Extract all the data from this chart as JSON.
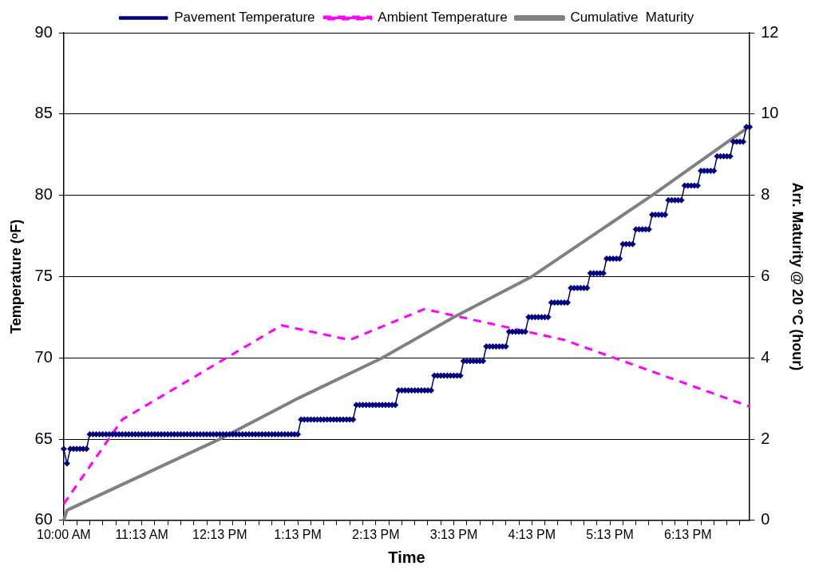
{
  "chart_data": {
    "type": "line",
    "xlabel": "Time",
    "ylabel": "Temperature (ᵒF)",
    "y2label": "Arr. Maturity @ 20 °C (hour)",
    "categories": [
      "10:00 AM",
      null,
      null,
      null,
      null,
      null,
      null,
      null,
      null,
      null,
      null,
      null,
      null,
      null,
      null,
      null,
      null,
      null,
      null,
      null,
      null,
      null,
      null,
      null,
      "11:13 AM",
      null,
      null,
      null,
      null,
      null,
      null,
      null,
      null,
      null,
      null,
      null,
      null,
      null,
      null,
      null,
      null,
      null,
      null,
      null,
      null,
      null,
      null,
      null,
      "12:13 PM",
      null,
      null,
      null,
      null,
      null,
      null,
      null,
      null,
      null,
      null,
      null,
      null,
      null,
      null,
      null,
      null,
      null,
      null,
      null,
      null,
      null,
      null,
      null,
      "1:13 PM",
      null,
      null,
      null,
      null,
      null,
      null,
      null,
      null,
      null,
      null,
      null,
      null,
      null,
      null,
      null,
      null,
      null,
      null,
      null,
      null,
      null,
      null,
      null,
      "2:13 PM",
      null,
      null,
      null,
      null,
      null,
      null,
      null,
      null,
      null,
      null,
      null,
      null,
      null,
      null,
      null,
      null,
      null,
      null,
      null,
      null,
      null,
      null,
      null,
      "3:13 PM",
      null,
      null,
      null,
      null,
      null,
      null,
      null,
      null,
      null,
      null,
      null,
      null,
      null,
      null,
      null,
      null,
      null,
      null,
      null,
      null,
      null,
      null,
      null,
      "4:13 PM",
      null,
      null,
      null,
      null,
      null,
      null,
      null,
      null,
      null,
      null,
      null,
      null,
      null,
      null,
      null,
      null,
      null,
      null,
      null,
      null,
      null,
      null,
      null,
      "5:13 PM",
      null,
      null,
      null,
      null,
      null,
      null,
      null,
      null,
      null,
      null,
      null,
      null,
      null,
      null,
      null,
      null,
      null,
      null,
      null,
      null,
      null,
      null,
      null,
      "6:13 PM",
      null,
      null,
      null,
      null,
      null,
      null,
      null,
      null,
      null,
      null,
      null,
      null,
      null,
      null,
      null,
      null,
      null,
      null,
      null
    ],
    "series": [
      {
        "name": "Pavement Temperature",
        "color": "#000080",
        "marker": "diamond",
        "line_style": "solid",
        "values": [
          64.4,
          63.5,
          64.4,
          64.4,
          64.4,
          64.4,
          64.4,
          64.4,
          65.3,
          65.3,
          65.3,
          65.3,
          65.3,
          65.3,
          65.3,
          65.3,
          65.3,
          65.3,
          65.3,
          65.3,
          65.3,
          65.3,
          65.3,
          65.3,
          65.3,
          65.3,
          65.3,
          65.3,
          65.3,
          65.3,
          65.3,
          65.3,
          65.3,
          65.3,
          65.3,
          65.3,
          65.3,
          65.3,
          65.3,
          65.3,
          65.3,
          65.3,
          65.3,
          65.3,
          65.3,
          65.3,
          65.3,
          65.3,
          65.3,
          65.3,
          65.3,
          65.3,
          65.3,
          65.3,
          65.3,
          65.3,
          65.3,
          65.3,
          65.3,
          65.3,
          65.3,
          65.3,
          65.3,
          65.3,
          65.3,
          65.3,
          65.3,
          65.3,
          65.3,
          65.3,
          65.3,
          65.3,
          65.3,
          66.2,
          66.2,
          66.2,
          66.2,
          66.2,
          66.2,
          66.2,
          66.2,
          66.2,
          66.2,
          66.2,
          66.2,
          66.2,
          66.2,
          66.2,
          66.2,
          66.2,
          67.1,
          67.1,
          67.1,
          67.1,
          67.1,
          67.1,
          67.1,
          67.1,
          67.1,
          67.1,
          67.1,
          67.1,
          67.1,
          68.0,
          68.0,
          68.0,
          68.0,
          68.0,
          68.0,
          68.0,
          68.0,
          68.0,
          68.0,
          68.0,
          68.9,
          68.9,
          68.9,
          68.9,
          68.9,
          68.9,
          68.9,
          68.9,
          68.9,
          69.8,
          69.8,
          69.8,
          69.8,
          69.8,
          69.8,
          69.8,
          70.7,
          70.7,
          70.7,
          70.7,
          70.7,
          70.7,
          70.7,
          71.6,
          71.6,
          71.6,
          71.6,
          71.6,
          71.6,
          72.5,
          72.5,
          72.5,
          72.5,
          72.5,
          72.5,
          72.5,
          73.4,
          73.4,
          73.4,
          73.4,
          73.4,
          73.4,
          74.3,
          74.3,
          74.3,
          74.3,
          74.3,
          74.3,
          75.2,
          75.2,
          75.2,
          75.2,
          75.2,
          76.1,
          76.1,
          76.1,
          76.1,
          76.1,
          77.0,
          77.0,
          77.0,
          77.0,
          77.9,
          77.9,
          77.9,
          77.9,
          77.9,
          78.8,
          78.8,
          78.8,
          78.8,
          78.8,
          79.7,
          79.7,
          79.7,
          79.7,
          79.7,
          80.6,
          80.6,
          80.6,
          80.6,
          80.6,
          81.5,
          81.5,
          81.5,
          81.5,
          81.5,
          82.4,
          82.4,
          82.4,
          82.4,
          82.4,
          83.3,
          83.3,
          83.3,
          83.3,
          84.2,
          84.2
        ]
      },
      {
        "name": "Ambient Temperature",
        "color": "#ff00ff",
        "marker": "none",
        "line_style": "dashed",
        "values": [
          61.0,
          null,
          null,
          null,
          null,
          null,
          null,
          null,
          null,
          null,
          null,
          null,
          null,
          null,
          null,
          null,
          null,
          null,
          66.2,
          null,
          null,
          null,
          null,
          null,
          null,
          null,
          null,
          null,
          null,
          null,
          null,
          null,
          null,
          null,
          null,
          null,
          null,
          null,
          null,
          null,
          null,
          null,
          null,
          null,
          null,
          null,
          null,
          null,
          null,
          null,
          null,
          null,
          null,
          null,
          null,
          null,
          null,
          null,
          null,
          null,
          null,
          null,
          null,
          null,
          null,
          null,
          null,
          72.0,
          null,
          null,
          null,
          null,
          null,
          null,
          null,
          null,
          null,
          null,
          null,
          null,
          null,
          null,
          null,
          null,
          null,
          null,
          null,
          null,
          71.1,
          null,
          null,
          null,
          null,
          null,
          null,
          null,
          null,
          null,
          null,
          null,
          null,
          null,
          null,
          null,
          null,
          null,
          null,
          null,
          null,
          null,
          null,
          73.0,
          null,
          null,
          null,
          null,
          null,
          null,
          null,
          null,
          null,
          null,
          null,
          null,
          null,
          null,
          null,
          null,
          null,
          null,
          null,
          null,
          null,
          null,
          null,
          null,
          null,
          null,
          null,
          null,
          null,
          null,
          null,
          null,
          null,
          null,
          null,
          null,
          null,
          null,
          null,
          null,
          null,
          null,
          71.1,
          null,
          null,
          null,
          null,
          null,
          null,
          null,
          null,
          null,
          null,
          null,
          null,
          null,
          null,
          null,
          null,
          null,
          null,
          null,
          null,
          null,
          null,
          null,
          null,
          null,
          null,
          null,
          null,
          null,
          null,
          null,
          null,
          null,
          null,
          null,
          null,
          null,
          null,
          null,
          null,
          null,
          null,
          null,
          null,
          null,
          null,
          null,
          null,
          null,
          null,
          null,
          null,
          null,
          null,
          null,
          null,
          67.0
        ]
      },
      {
        "name": "Cumulative  Maturity",
        "color": "#808080",
        "marker": "none",
        "line_style": "solid",
        "axis": "y2",
        "values": [
          0,
          0.25,
          null,
          null,
          null,
          null,
          null,
          null,
          null,
          null,
          null,
          null,
          null,
          null,
          null,
          null,
          null,
          null,
          null,
          null,
          null,
          null,
          null,
          null,
          null,
          null,
          null,
          null,
          null,
          null,
          null,
          null,
          null,
          null,
          null,
          null,
          null,
          null,
          null,
          null,
          null,
          null,
          null,
          null,
          null,
          null,
          null,
          null,
          2.0,
          null,
          null,
          null,
          null,
          null,
          null,
          null,
          null,
          null,
          null,
          null,
          null,
          null,
          null,
          null,
          null,
          null,
          null,
          null,
          null,
          null,
          null,
          null,
          3.0,
          null,
          null,
          null,
          null,
          null,
          null,
          null,
          null,
          null,
          null,
          null,
          null,
          null,
          null,
          null,
          null,
          null,
          null,
          null,
          null,
          null,
          null,
          null,
          null,
          null,
          4.0,
          null,
          null,
          null,
          null,
          null,
          null,
          null,
          null,
          null,
          null,
          null,
          null,
          null,
          null,
          null,
          null,
          null,
          null,
          null,
          null,
          null,
          5.0,
          null,
          null,
          null,
          null,
          null,
          null,
          null,
          null,
          null,
          null,
          null,
          null,
          null,
          null,
          null,
          null,
          null,
          null,
          null,
          null,
          null,
          null,
          null,
          6.0,
          null,
          null,
          null,
          null,
          null,
          null,
          null,
          null,
          null,
          null,
          null,
          null,
          null,
          null,
          null,
          null,
          null,
          null,
          null,
          null,
          null,
          null,
          null,
          null,
          null,
          null,
          null,
          null,
          null,
          null,
          null,
          null,
          null,
          null,
          null,
          null,
          8.0,
          null,
          null,
          null,
          null,
          null,
          null,
          null,
          null,
          null,
          null,
          null,
          null,
          null,
          null,
          null,
          null,
          null,
          null,
          null,
          null,
          null,
          null,
          null,
          null,
          null,
          null,
          null,
          null,
          null,
          9.7
        ]
      }
    ],
    "ylim": [
      60,
      90
    ],
    "yticks": [
      60,
      65,
      70,
      75,
      80,
      85,
      90
    ],
    "y2lim": [
      0,
      12
    ],
    "y2ticks": [
      0,
      2,
      4,
      6,
      8,
      10,
      12
    ],
    "grid": "y",
    "legend": "top"
  }
}
